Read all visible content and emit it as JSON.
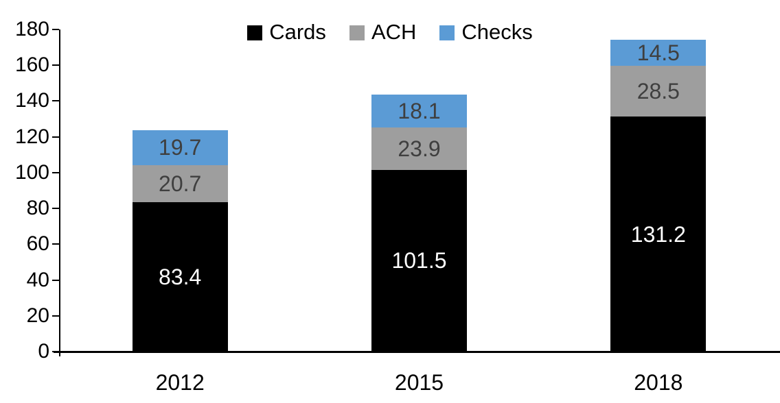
{
  "chart_data": {
    "type": "bar",
    "stacked": true,
    "title": "",
    "xlabel": "",
    "ylabel": "",
    "categories": [
      "2012",
      "2015",
      "2018"
    ],
    "series": [
      {
        "name": "Cards",
        "color": "#000000",
        "label_color": "#ffffff",
        "values": [
          83.4,
          101.5,
          131.2
        ]
      },
      {
        "name": "ACH",
        "color": "#9e9e9e",
        "label_color": "#3f3f3f",
        "values": [
          20.7,
          23.9,
          28.5
        ]
      },
      {
        "name": "Checks",
        "color": "#5b9bd5",
        "label_color": "#3f3f3f",
        "values": [
          19.7,
          18.1,
          14.5
        ]
      }
    ],
    "totals": [
      123.8,
      143.5,
      174.2
    ],
    "ylim": [
      0,
      180
    ],
    "yticks": [
      0,
      20,
      40,
      60,
      80,
      100,
      120,
      140,
      160,
      180
    ],
    "value_decimals": 1,
    "legend_position": "top-center",
    "grid": false,
    "axis_color": "#000000",
    "background_color": "#ffffff"
  }
}
